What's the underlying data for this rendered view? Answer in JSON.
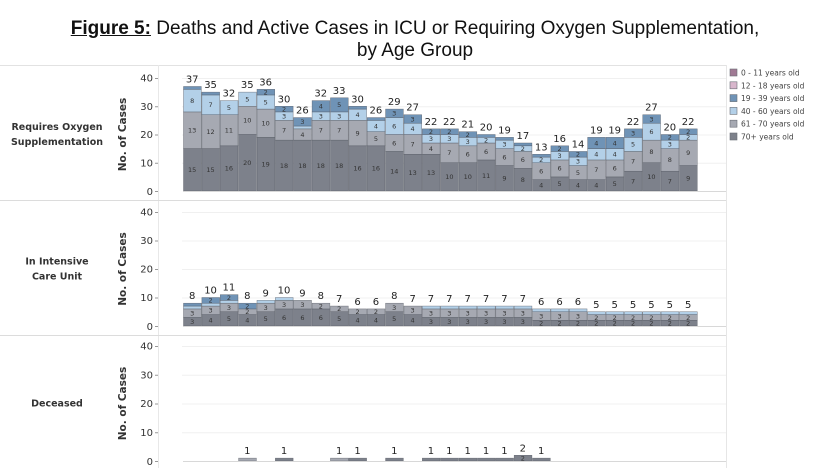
{
  "title": {
    "prefix": "Figure 5:",
    "line1": " Deaths and Active Cases in ICU or Requiring Oxygen Supplementation,",
    "line2": "by Age Group"
  },
  "chart_data": {
    "type": "bar",
    "stacked": true,
    "title": "Figure 5: Deaths and Active Cases in ICU or Requiring Oxygen Supplementation, by Age Group",
    "legend": {
      "position": "top-right",
      "entries": [
        {
          "name": "0 - 11 years old",
          "color": "#a07a94"
        },
        {
          "name": "12 - 18 years old",
          "color": "#d8b6cc"
        },
        {
          "name": "19 - 39 years old",
          "color": "#6f93b6"
        },
        {
          "name": "40 - 60 years old",
          "color": "#b3d0e8"
        },
        {
          "name": "61 - 70 years old",
          "color": "#a6a9b2"
        },
        {
          "name": "70+ years old",
          "color": "#7d818b"
        }
      ]
    },
    "series_order_bottom_to_top": [
      "70+ years old",
      "61 - 70 years old",
      "40 - 60 years old",
      "19 - 39 years old",
      "12 - 18 years old",
      "0 - 11 years old"
    ],
    "num_bars": 28,
    "panels": [
      {
        "label": "Requires Oxygen Supplementation",
        "ylabel": "No. of Cases",
        "ylim": [
          0,
          40
        ],
        "yticks": [
          0,
          10,
          20,
          30,
          40
        ],
        "totals": [
          37,
          35,
          32,
          35,
          36,
          30,
          26,
          32,
          33,
          30,
          26,
          29,
          27,
          22,
          22,
          21,
          20,
          19,
          17,
          13,
          16,
          14,
          19,
          19,
          22,
          27,
          20,
          22
        ],
        "series": [
          {
            "name": "70+ years old",
            "values": [
              15,
              15,
              16,
              20,
              19,
              18,
              18,
              18,
              18,
              16,
              16,
              14,
              13,
              13,
              10,
              10,
              11,
              9,
              8,
              4,
              5,
              4,
              4,
              5,
              7,
              10,
              7,
              9
            ]
          },
          {
            "name": "61 - 70 years old",
            "values": [
              13,
              12,
              11,
              10,
              10,
              7,
              4,
              7,
              7,
              9,
              5,
              6,
              7,
              4,
              7,
              6,
              6,
              6,
              6,
              6,
              6,
              5,
              7,
              6,
              7,
              8,
              8,
              9
            ]
          },
          {
            "name": "40 - 60 years old",
            "values": [
              8,
              7,
              5,
              5,
              5,
              3,
              1,
              3,
              3,
              4,
              4,
              6,
              4,
              3,
              3,
              3,
              2,
              3,
              2,
              2,
              3,
              3,
              4,
              4,
              5,
              6,
              3,
              2
            ]
          },
          {
            "name": "19 - 39 years old",
            "values": [
              1,
              1,
              0,
              0,
              2,
              2,
              3,
              4,
              5,
              1,
              1,
              3,
              3,
              2,
              2,
              2,
              1,
              1,
              1,
              1,
              2,
              2,
              4,
              4,
              3,
              3,
              2,
              2
            ]
          }
        ]
      },
      {
        "label": "In Intensive Care Unit",
        "ylabel": "No. of Cases",
        "ylim": [
          0,
          40
        ],
        "yticks": [
          0,
          10,
          20,
          30,
          40
        ],
        "totals": [
          8,
          10,
          11,
          8,
          9,
          10,
          9,
          8,
          7,
          6,
          6,
          8,
          7,
          7,
          7,
          7,
          7,
          7,
          7,
          6,
          6,
          6,
          5,
          5,
          5,
          5,
          5,
          5
        ],
        "series": [
          {
            "name": "70+ years old",
            "values": [
              3,
              4,
              5,
              4,
              5,
              6,
              6,
              6,
              5,
              4,
              4,
              5,
              4,
              3,
              3,
              3,
              3,
              3,
              3,
              2,
              2,
              2,
              2,
              2,
              2,
              2,
              2,
              2
            ]
          },
          {
            "name": "61 - 70 years old",
            "values": [
              3,
              3,
              3,
              2,
              3,
              3,
              3,
              2,
              2,
              2,
              2,
              3,
              3,
              3,
              3,
              3,
              3,
              3,
              3,
              3,
              3,
              3,
              2,
              2,
              2,
              2,
              2,
              2
            ]
          },
          {
            "name": "40 - 60 years old",
            "values": [
              1,
              1,
              1,
              0,
              1,
              1,
              0,
              0,
              0,
              0,
              0,
              0,
              0,
              1,
              1,
              1,
              1,
              1,
              1,
              1,
              1,
              1,
              1,
              1,
              1,
              1,
              1,
              1
            ]
          },
          {
            "name": "19 - 39 years old",
            "values": [
              1,
              2,
              2,
              2,
              0,
              0,
              0,
              0,
              0,
              0,
              0,
              0,
              0,
              0,
              0,
              0,
              0,
              0,
              0,
              0,
              0,
              0,
              0,
              0,
              0,
              0,
              0,
              0
            ]
          }
        ]
      },
      {
        "label": "Deceased",
        "ylabel": "No. of Cases",
        "ylim": [
          0,
          40
        ],
        "yticks": [
          0,
          10,
          20,
          30,
          40
        ],
        "totals": [
          0,
          0,
          0,
          1,
          0,
          1,
          0,
          0,
          1,
          1,
          0,
          1,
          0,
          1,
          1,
          1,
          1,
          1,
          2,
          1,
          0,
          0,
          0,
          0,
          0,
          0,
          0,
          0
        ],
        "series": [
          {
            "name": "70+ years old",
            "values": [
              0,
              0,
              0,
              0,
              0,
              1,
              0,
              0,
              0,
              1,
              0,
              1,
              0,
              1,
              1,
              1,
              1,
              1,
              2,
              1,
              0,
              0,
              0,
              0,
              0,
              0,
              0,
              0
            ]
          },
          {
            "name": "61 - 70 years old",
            "values": [
              0,
              0,
              0,
              1,
              0,
              0,
              0,
              0,
              1,
              0,
              0,
              0,
              0,
              0,
              0,
              0,
              0,
              0,
              0,
              0,
              0,
              0,
              0,
              0,
              0,
              0,
              0,
              0
            ]
          }
        ]
      }
    ]
  }
}
